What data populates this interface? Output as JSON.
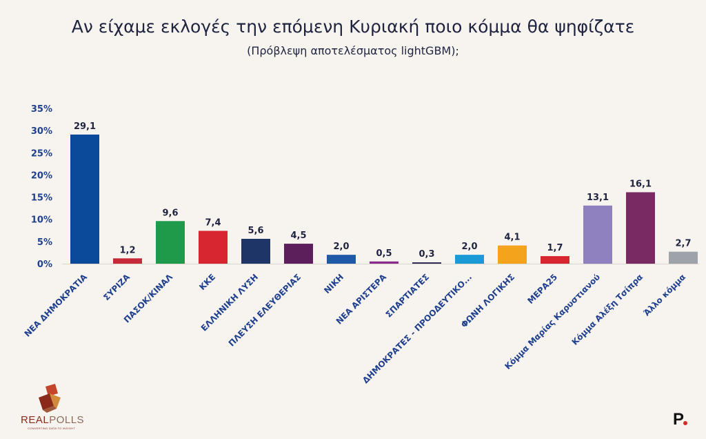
{
  "chart_data": {
    "type": "bar",
    "title": "Αν είχαμε εκλογές την επόμενη Κυριακή ποιο κόμμα θα ψηφίζατε",
    "subtitle": "(Πρόβλεψη αποτελέσματος lightGBM);",
    "ylim": [
      0,
      35
    ],
    "yticks": [
      "0%",
      "5%",
      "10%",
      "15%",
      "20%",
      "25%",
      "30%",
      "35%"
    ],
    "grid": false,
    "categories": [
      "ΝΕΑ ΔΗΜΟΚΡΑΤΙΑ",
      "ΣΥΡΙΖΑ",
      "ΠΑΣΟΚ/ΚΙΝΑΛ",
      "ΚΚΕ",
      "ΕΛΛΗΝΙΚΗ ΛΥΣΗ",
      "ΠΛΕΥΣΗ ΕΛΕΥΘΕΡΙΑΣ",
      "ΝΙΚΗ",
      "ΝΕΑ ΑΡΙΣΤΕΡΑ",
      "ΣΠΑΡΤΙΑΤΕΣ",
      "ΔΗΜΟΚΡΑΤΕΣ - ΠΡΟΟΔΕΥΤΙΚΟ...",
      "ΦΩΝΗ ΛΟΓΙΚΗΣ",
      "ΜΕΡΑ25",
      "Κόμμα Μαρίας Καρυστιανού",
      "Κόμμα Αλέξη Τσίπρα",
      "Άλλο κόμμα"
    ],
    "values": [
      29.1,
      1.2,
      9.6,
      7.4,
      5.6,
      4.5,
      2.0,
      0.5,
      0.3,
      2.0,
      4.1,
      1.7,
      13.1,
      16.1,
      2.7
    ],
    "value_labels": [
      "29,1",
      "1,2",
      "9,6",
      "7,4",
      "5,6",
      "4,5",
      "2,0",
      "0,5",
      "0,3",
      "2,0",
      "4,1",
      "1,7",
      "13,1",
      "16,1",
      "2,7"
    ],
    "colors": [
      "#0b4a9a",
      "#c62a38",
      "#1f9a4a",
      "#d7262f",
      "#1d3567",
      "#5c1f5c",
      "#1f5aa8",
      "#8a2a8a",
      "#2a2450",
      "#1c9ad6",
      "#f4a31c",
      "#d7262f",
      "#8f80c0",
      "#7a2a63",
      "#9ea3aa"
    ]
  },
  "branding": {
    "logo_text_bold": "REAL",
    "logo_text_light": "POLLS",
    "logo_tagline": "CONVERTING DATA TO INSIGHT",
    "logo_icon": "realpolls-cube-icon",
    "corner_mark": "P."
  }
}
